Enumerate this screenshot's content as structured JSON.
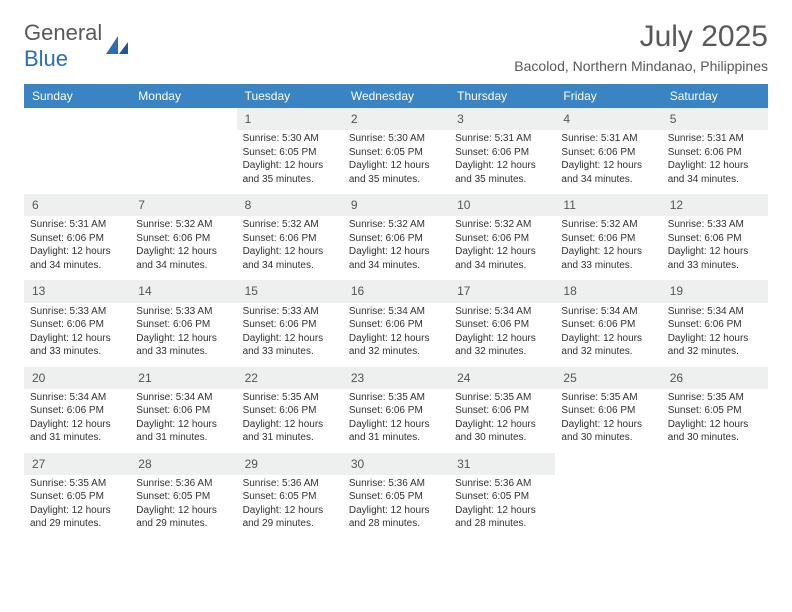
{
  "brand": {
    "name1": "General",
    "name2": "Blue"
  },
  "title": "July 2025",
  "location": "Bacolod, Northern Mindanao, Philippines",
  "colors": {
    "header_bg": "#3b84c4",
    "header_text": "#ffffff",
    "daynum_bg": "#eef0f0",
    "text": "#333333",
    "brand_gray": "#58595b",
    "brand_blue": "#2a6fb5"
  },
  "weekdays": [
    "Sunday",
    "Monday",
    "Tuesday",
    "Wednesday",
    "Thursday",
    "Friday",
    "Saturday"
  ],
  "weeks": [
    [
      null,
      null,
      {
        "n": "1",
        "sunrise": "5:30 AM",
        "sunset": "6:05 PM",
        "dh": "12",
        "dm": "35"
      },
      {
        "n": "2",
        "sunrise": "5:30 AM",
        "sunset": "6:05 PM",
        "dh": "12",
        "dm": "35"
      },
      {
        "n": "3",
        "sunrise": "5:31 AM",
        "sunset": "6:06 PM",
        "dh": "12",
        "dm": "35"
      },
      {
        "n": "4",
        "sunrise": "5:31 AM",
        "sunset": "6:06 PM",
        "dh": "12",
        "dm": "34"
      },
      {
        "n": "5",
        "sunrise": "5:31 AM",
        "sunset": "6:06 PM",
        "dh": "12",
        "dm": "34"
      }
    ],
    [
      {
        "n": "6",
        "sunrise": "5:31 AM",
        "sunset": "6:06 PM",
        "dh": "12",
        "dm": "34"
      },
      {
        "n": "7",
        "sunrise": "5:32 AM",
        "sunset": "6:06 PM",
        "dh": "12",
        "dm": "34"
      },
      {
        "n": "8",
        "sunrise": "5:32 AM",
        "sunset": "6:06 PM",
        "dh": "12",
        "dm": "34"
      },
      {
        "n": "9",
        "sunrise": "5:32 AM",
        "sunset": "6:06 PM",
        "dh": "12",
        "dm": "34"
      },
      {
        "n": "10",
        "sunrise": "5:32 AM",
        "sunset": "6:06 PM",
        "dh": "12",
        "dm": "34"
      },
      {
        "n": "11",
        "sunrise": "5:32 AM",
        "sunset": "6:06 PM",
        "dh": "12",
        "dm": "33"
      },
      {
        "n": "12",
        "sunrise": "5:33 AM",
        "sunset": "6:06 PM",
        "dh": "12",
        "dm": "33"
      }
    ],
    [
      {
        "n": "13",
        "sunrise": "5:33 AM",
        "sunset": "6:06 PM",
        "dh": "12",
        "dm": "33"
      },
      {
        "n": "14",
        "sunrise": "5:33 AM",
        "sunset": "6:06 PM",
        "dh": "12",
        "dm": "33"
      },
      {
        "n": "15",
        "sunrise": "5:33 AM",
        "sunset": "6:06 PM",
        "dh": "12",
        "dm": "33"
      },
      {
        "n": "16",
        "sunrise": "5:34 AM",
        "sunset": "6:06 PM",
        "dh": "12",
        "dm": "32"
      },
      {
        "n": "17",
        "sunrise": "5:34 AM",
        "sunset": "6:06 PM",
        "dh": "12",
        "dm": "32"
      },
      {
        "n": "18",
        "sunrise": "5:34 AM",
        "sunset": "6:06 PM",
        "dh": "12",
        "dm": "32"
      },
      {
        "n": "19",
        "sunrise": "5:34 AM",
        "sunset": "6:06 PM",
        "dh": "12",
        "dm": "32"
      }
    ],
    [
      {
        "n": "20",
        "sunrise": "5:34 AM",
        "sunset": "6:06 PM",
        "dh": "12",
        "dm": "31"
      },
      {
        "n": "21",
        "sunrise": "5:34 AM",
        "sunset": "6:06 PM",
        "dh": "12",
        "dm": "31"
      },
      {
        "n": "22",
        "sunrise": "5:35 AM",
        "sunset": "6:06 PM",
        "dh": "12",
        "dm": "31"
      },
      {
        "n": "23",
        "sunrise": "5:35 AM",
        "sunset": "6:06 PM",
        "dh": "12",
        "dm": "31"
      },
      {
        "n": "24",
        "sunrise": "5:35 AM",
        "sunset": "6:06 PM",
        "dh": "12",
        "dm": "30"
      },
      {
        "n": "25",
        "sunrise": "5:35 AM",
        "sunset": "6:06 PM",
        "dh": "12",
        "dm": "30"
      },
      {
        "n": "26",
        "sunrise": "5:35 AM",
        "sunset": "6:05 PM",
        "dh": "12",
        "dm": "30"
      }
    ],
    [
      {
        "n": "27",
        "sunrise": "5:35 AM",
        "sunset": "6:05 PM",
        "dh": "12",
        "dm": "29"
      },
      {
        "n": "28",
        "sunrise": "5:36 AM",
        "sunset": "6:05 PM",
        "dh": "12",
        "dm": "29"
      },
      {
        "n": "29",
        "sunrise": "5:36 AM",
        "sunset": "6:05 PM",
        "dh": "12",
        "dm": "29"
      },
      {
        "n": "30",
        "sunrise": "5:36 AM",
        "sunset": "6:05 PM",
        "dh": "12",
        "dm": "28"
      },
      {
        "n": "31",
        "sunrise": "5:36 AM",
        "sunset": "6:05 PM",
        "dh": "12",
        "dm": "28"
      },
      null,
      null
    ]
  ],
  "labels": {
    "sunrise": "Sunrise:",
    "sunset": "Sunset:",
    "daylight": "Daylight:",
    "hours": "hours",
    "and": "and",
    "minutes": "minutes."
  }
}
